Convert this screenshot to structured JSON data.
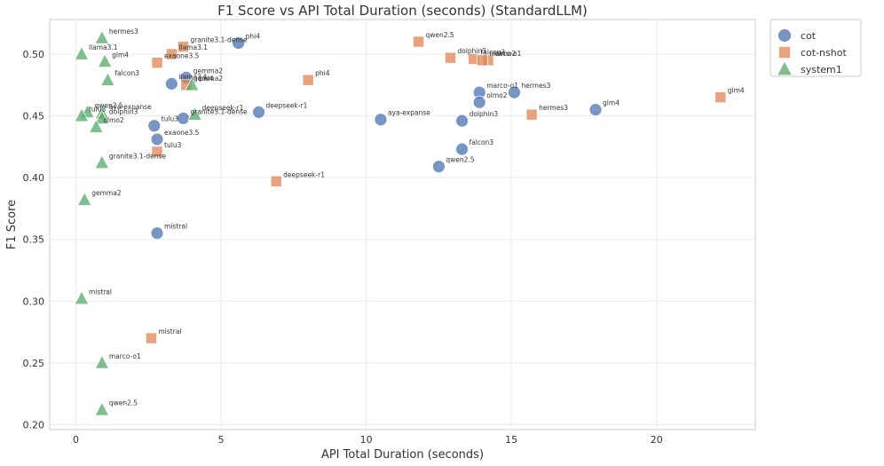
{
  "chart_data": {
    "type": "scatter",
    "title": "F1 Score vs API Total Duration (seconds) (StandardLLM)",
    "xlabel": "API Total Duration (seconds)",
    "ylabel": "F1 Score",
    "xlim": [
      -0.9,
      23.4
    ],
    "ylim": [
      0.196,
      0.528
    ],
    "xticks": [
      0,
      5,
      10,
      15,
      20
    ],
    "yticks": [
      0.2,
      0.25,
      0.3,
      0.35,
      0.4,
      0.45,
      0.5
    ],
    "grid": true,
    "legend_position": "outside-top-right",
    "series": [
      {
        "name": "cot",
        "marker": "circle",
        "color": "#4c72b0",
        "points": [
          {
            "label": "phi4",
            "x": 5.6,
            "y": 0.509
          },
          {
            "label": "gemma2",
            "x": 3.8,
            "y": 0.481
          },
          {
            "label": "llama3.1",
            "x": 3.3,
            "y": 0.476
          },
          {
            "label": "tulu3",
            "x": 2.7,
            "y": 0.442
          },
          {
            "label": "exaone3.5",
            "x": 2.8,
            "y": 0.431
          },
          {
            "label": "granite3.1-dense",
            "x": 3.7,
            "y": 0.448
          },
          {
            "label": "deepseek-r1",
            "x": 6.3,
            "y": 0.453
          },
          {
            "label": "mistral",
            "x": 2.8,
            "y": 0.355
          },
          {
            "label": "aya-expanse",
            "x": 10.5,
            "y": 0.447
          },
          {
            "label": "dolphin3",
            "x": 13.3,
            "y": 0.446
          },
          {
            "label": "marco-o1",
            "x": 13.9,
            "y": 0.469
          },
          {
            "label": "olmo2",
            "x": 13.9,
            "y": 0.461
          },
          {
            "label": "hermes3",
            "x": 15.1,
            "y": 0.469
          },
          {
            "label": "glm4",
            "x": 17.9,
            "y": 0.455
          },
          {
            "label": "falcon3",
            "x": 13.3,
            "y": 0.423
          },
          {
            "label": "qwen2.5",
            "x": 12.5,
            "y": 0.409
          }
        ]
      },
      {
        "name": "cot-nshot",
        "marker": "square",
        "color": "#dd8452",
        "points": [
          {
            "label": "granite3.1-dense",
            "x": 3.7,
            "y": 0.506
          },
          {
            "label": "llama3.1",
            "x": 3.3,
            "y": 0.5
          },
          {
            "label": "exaone3.5",
            "x": 2.8,
            "y": 0.493
          },
          {
            "label": "gemma2",
            "x": 3.8,
            "y": 0.475
          },
          {
            "label": "phi4",
            "x": 8.0,
            "y": 0.479
          },
          {
            "label": "qwen2.5",
            "x": 11.8,
            "y": 0.51
          },
          {
            "label": "dolphin3",
            "x": 12.9,
            "y": 0.497
          },
          {
            "label": "falcon3",
            "x": 13.7,
            "y": 0.496
          },
          {
            "label": "olmo2",
            "x": 14.2,
            "y": 0.495
          },
          {
            "label": "marco-o1",
            "x": 14.0,
            "y": 0.495
          },
          {
            "label": "hermes3",
            "x": 15.7,
            "y": 0.451
          },
          {
            "label": "glm4",
            "x": 22.2,
            "y": 0.465
          },
          {
            "label": "tulu3",
            "x": 2.8,
            "y": 0.421
          },
          {
            "label": "deepseek-r1",
            "x": 6.9,
            "y": 0.397
          },
          {
            "label": "mistral",
            "x": 2.6,
            "y": 0.27
          }
        ]
      },
      {
        "name": "system1",
        "marker": "triangle",
        "color": "#55a868",
        "points": [
          {
            "label": "hermes3",
            "x": 0.9,
            "y": 0.513
          },
          {
            "label": "llama3.1",
            "x": 0.2,
            "y": 0.5
          },
          {
            "label": "glm4",
            "x": 1.0,
            "y": 0.494
          },
          {
            "label": "falcon3",
            "x": 1.1,
            "y": 0.479
          },
          {
            "label": "phi4",
            "x": 4.0,
            "y": 0.475
          },
          {
            "label": "deepseek-r1",
            "x": 4.1,
            "y": 0.451
          },
          {
            "label": "qwen2.5",
            "x": 0.4,
            "y": 0.453
          },
          {
            "label": "aya-expanse",
            "x": 0.9,
            "y": 0.452
          },
          {
            "label": "tulu3",
            "x": 0.2,
            "y": 0.45
          },
          {
            "label": "dolphin3",
            "x": 0.9,
            "y": 0.448
          },
          {
            "label": "olmo2",
            "x": 0.7,
            "y": 0.441
          },
          {
            "label": "granite3.1-dense",
            "x": 0.9,
            "y": 0.412
          },
          {
            "label": "gemma2",
            "x": 0.3,
            "y": 0.382
          },
          {
            "label": "mistral",
            "x": 0.2,
            "y": 0.302
          },
          {
            "label": "marco-o1",
            "x": 0.9,
            "y": 0.25
          },
          {
            "label": "qwen2.5",
            "x": 0.9,
            "y": 0.212
          }
        ]
      }
    ]
  }
}
